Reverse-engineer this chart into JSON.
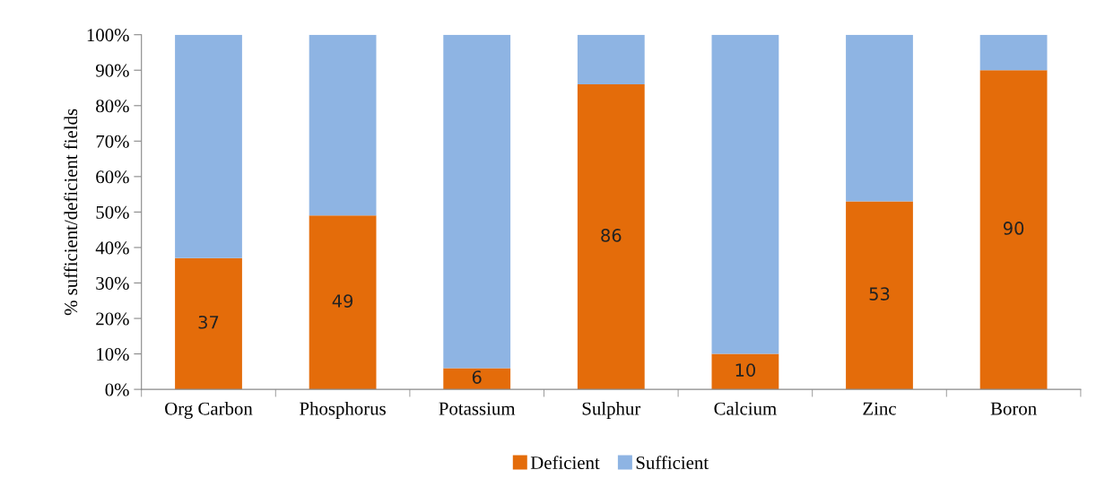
{
  "chart_data": {
    "type": "bar",
    "stacked": true,
    "ylabel": "% sufficient/deficient fields",
    "categories": [
      "Org Carbon",
      "Phosphorus",
      "Potassium",
      "Sulphur",
      "Calcium",
      "Zinc",
      "Boron"
    ],
    "series": [
      {
        "name": "Deficient",
        "color": "#e46c0a",
        "values": [
          37,
          49,
          6,
          86,
          10,
          53,
          90
        ],
        "value_labels": [
          "37",
          "49",
          "6",
          "86",
          "10",
          "53",
          "90"
        ]
      },
      {
        "name": "Sufficient",
        "color": "#8eb4e3",
        "values": [
          63,
          51,
          94,
          14,
          90,
          47,
          10
        ]
      }
    ],
    "ylim": [
      0,
      100
    ],
    "yticks": [
      {
        "value": 0,
        "label": "0%"
      },
      {
        "value": 10,
        "label": "10%"
      },
      {
        "value": 20,
        "label": "20%"
      },
      {
        "value": 30,
        "label": "30%"
      },
      {
        "value": 40,
        "label": "40%"
      },
      {
        "value": 50,
        "label": "50%"
      },
      {
        "value": 60,
        "label": "60%"
      },
      {
        "value": 70,
        "label": "70%"
      },
      {
        "value": 80,
        "label": "80%"
      },
      {
        "value": 90,
        "label": "90%"
      },
      {
        "value": 100,
        "label": "100%"
      }
    ],
    "grid": false,
    "legend": "bottom"
  }
}
